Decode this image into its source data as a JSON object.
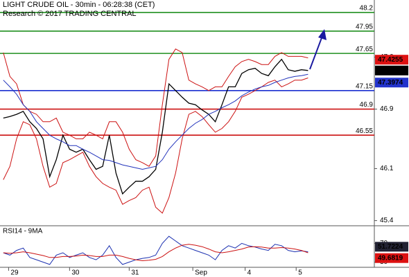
{
  "chart_data": [
    {
      "type": "line",
      "title": "LIGHT CRUDE OIL - 30min - 06:28:38 (CET)",
      "subtitle": "Research © 2017 TRADING CENTRAL",
      "xlim": [
        -0.5,
        56
      ],
      "ylim": [
        45.34,
        48.35
      ],
      "yticks": [
        45.4,
        46.1,
        46.9,
        47.6
      ],
      "series": [
        {
          "color": "#000000",
          "values": [
            46.78,
            46.8,
            46.83,
            46.87,
            46.73,
            46.64,
            46.5,
            45.99,
            46.22,
            46.55,
            46.36,
            46.32,
            46.36,
            46.22,
            46.09,
            46.13,
            46.55,
            46.04,
            45.76,
            45.85,
            45.93,
            45.93,
            45.99,
            46.09,
            46.59,
            47.24,
            47.15,
            47.06,
            46.98,
            46.96,
            46.89,
            46.83,
            46.73,
            46.96,
            47.2,
            47.2,
            47.38,
            47.43,
            47.45,
            47.38,
            47.35,
            47.47,
            47.57,
            47.43,
            47.41,
            47.43,
            47.42
          ]
        },
        {
          "color": "#cc1111",
          "values": [
            47.66,
            47.34,
            47.24,
            46.96,
            46.87,
            46.83,
            46.73,
            46.73,
            46.78,
            46.59,
            46.55,
            46.5,
            46.5,
            46.59,
            46.55,
            46.5,
            46.73,
            46.73,
            46.59,
            46.36,
            46.22,
            46.18,
            46.13,
            46.27,
            46.96,
            47.57,
            47.71,
            47.66,
            47.29,
            47.24,
            47.2,
            47.15,
            47.2,
            47.2,
            47.34,
            47.47,
            47.54,
            47.57,
            47.54,
            47.5,
            47.5,
            47.61,
            47.66,
            47.61,
            47.61,
            47.61,
            47.59
          ]
        },
        {
          "color": "#cc1111",
          "values": [
            45.95,
            46.13,
            46.5,
            46.73,
            46.69,
            46.5,
            46.13,
            45.85,
            45.9,
            46.18,
            46.22,
            46.27,
            46.32,
            46.13,
            45.99,
            45.9,
            45.85,
            45.81,
            45.62,
            45.67,
            45.71,
            45.81,
            45.85,
            45.58,
            45.5,
            45.71,
            46.04,
            46.5,
            46.83,
            46.87,
            46.8,
            46.69,
            46.59,
            46.64,
            46.73,
            46.87,
            47.06,
            47.1,
            47.15,
            47.2,
            47.26,
            47.29,
            47.2,
            47.24,
            47.29,
            47.29,
            47.32
          ]
        },
        {
          "color": "#2233bb",
          "values": [
            47.29,
            47.2,
            47.1,
            46.96,
            46.87,
            46.73,
            46.64,
            46.55,
            46.5,
            46.46,
            46.41,
            46.41,
            46.36,
            46.32,
            46.27,
            46.22,
            46.21,
            46.18,
            46.15,
            46.13,
            46.11,
            46.09,
            46.11,
            46.13,
            46.22,
            46.36,
            46.46,
            46.55,
            46.64,
            46.71,
            46.76,
            46.83,
            46.87,
            46.92,
            46.96,
            47.01,
            47.08,
            47.13,
            47.17,
            47.2,
            47.22,
            47.26,
            47.29,
            47.32,
            47.34,
            47.35,
            47.37
          ]
        }
      ],
      "levels": [
        {
          "value": 48.2,
          "color": "#1f8f1f"
        },
        {
          "value": 47.95,
          "color": "#1f8f1f"
        },
        {
          "value": 47.65,
          "color": "#1f8f1f"
        },
        {
          "value": 47.15,
          "color": "#1a2fd0"
        },
        {
          "value": 46.9,
          "color": "#cc1111"
        },
        {
          "value": 46.55,
          "color": "#cc1111"
        }
      ],
      "markers": [
        {
          "value": 47.4255,
          "color": "#dd1111"
        },
        {
          "value": 47.42,
          "color": "#000000"
        },
        {
          "value": 47.3974,
          "color": "#2233cc"
        }
      ]
    },
    {
      "type": "line",
      "title": "RSI14 - 9MA",
      "xlim": [
        -0.5,
        56
      ],
      "ylim": [
        19,
        106
      ],
      "yticks": [
        30,
        70
      ],
      "xticks": [
        {
          "value": 0.8,
          "label": "29"
        },
        {
          "value": 10,
          "label": "30"
        },
        {
          "value": 19,
          "label": "31"
        },
        {
          "value": 28.6,
          "label": "Sep"
        },
        {
          "value": 36.5,
          "label": "4"
        },
        {
          "value": 44.2,
          "label": "5"
        }
      ],
      "series": [
        {
          "color": "#1a2fb0",
          "values": [
            50,
            45,
            55,
            60,
            40,
            35,
            30,
            25,
            45,
            50,
            40,
            45,
            50,
            40,
            35,
            45,
            65,
            40,
            25,
            30,
            35,
            38,
            40,
            45,
            70,
            85,
            75,
            65,
            60,
            55,
            50,
            45,
            35,
            55,
            65,
            60,
            70,
            65,
            62,
            58,
            55,
            68,
            65,
            55,
            52,
            54,
            52
          ]
        },
        {
          "color": "#cc1111",
          "values": [
            50,
            49,
            50,
            52,
            50,
            47,
            44,
            40,
            40,
            42,
            42,
            43,
            45,
            44,
            42,
            42,
            45,
            45,
            42,
            38,
            35,
            33,
            34,
            36,
            42,
            52,
            60,
            66,
            68,
            66,
            63,
            58,
            52,
            50,
            52,
            55,
            58,
            62,
            63,
            62,
            60,
            60,
            61,
            60,
            58,
            55,
            50
          ]
        }
      ],
      "markers": [
        {
          "value": 51.7224,
          "color": "#222233"
        },
        {
          "value": 49.6819,
          "color": "#dd1111"
        }
      ]
    }
  ]
}
